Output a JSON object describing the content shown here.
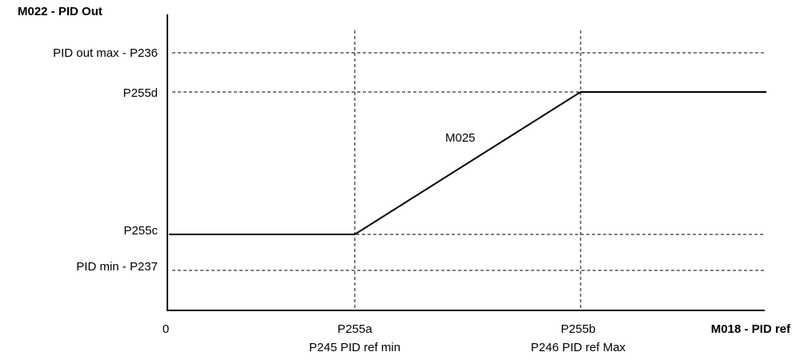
{
  "diagram": {
    "y_axis_title": "M022 - PID Out",
    "x_axis_title": "M018 - PID ref",
    "origin_label": "0",
    "y_levels": [
      {
        "label": "PID out max - P236"
      },
      {
        "label": "P255d"
      },
      {
        "label": "P255c"
      },
      {
        "label": "PID min - P237"
      }
    ],
    "x_marks": [
      {
        "label": "P255a",
        "sublabel": "P245 PID ref min"
      },
      {
        "label": "P255b",
        "sublabel": "P246 PID ref Max"
      }
    ],
    "curve_label": "M025"
  }
}
